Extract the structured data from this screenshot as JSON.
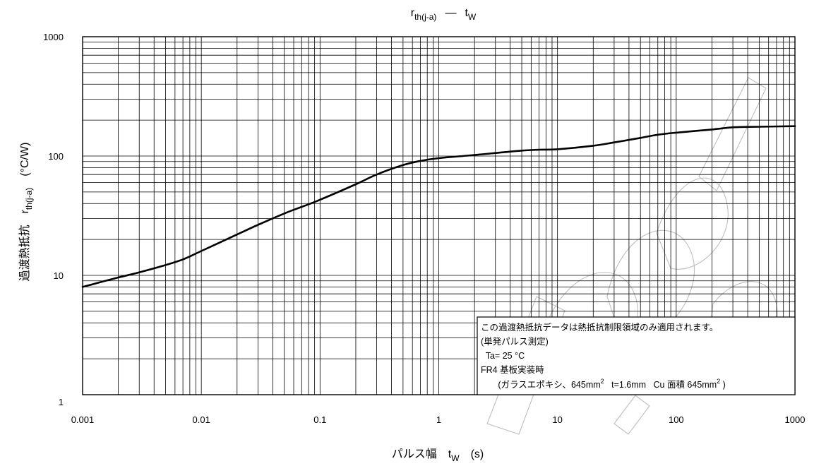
{
  "chart_data": {
    "type": "line",
    "title": {
      "base": "r",
      "sub": "th(j-a)",
      "dash": "—",
      "x_base": "t",
      "x_sub": "W"
    },
    "xlabel": {
      "text": "パルス幅",
      "sym": "t",
      "sym_sub": "W",
      "unit": "(s)"
    },
    "ylabel": {
      "text": "過渡熱抵抗",
      "sym": "r",
      "sym_sub": "th(j-a)",
      "unit": "(°C/W)"
    },
    "xscale": "log",
    "yscale": "log",
    "xlim": [
      0.001,
      1000
    ],
    "ylim": [
      1,
      1000
    ],
    "x_ticks": [
      {
        "value": 0.001,
        "label": "0.001"
      },
      {
        "value": 0.01,
        "label": "0.01"
      },
      {
        "value": 0.1,
        "label": "0.1"
      },
      {
        "value": 1,
        "label": "1"
      },
      {
        "value": 10,
        "label": "10"
      },
      {
        "value": 100,
        "label": "100"
      },
      {
        "value": 1000,
        "label": "1000"
      }
    ],
    "y_ticks": [
      {
        "value": 1,
        "label": "1"
      },
      {
        "value": 10,
        "label": "10"
      },
      {
        "value": 100,
        "label": "100"
      },
      {
        "value": 1000,
        "label": "1000"
      }
    ],
    "grid": true,
    "series": [
      {
        "color": "#000000",
        "x": [
          0.001,
          0.002,
          0.003,
          0.005,
          0.007,
          0.01,
          0.02,
          0.03,
          0.05,
          0.07,
          0.1,
          0.2,
          0.3,
          0.5,
          0.7,
          1,
          2,
          3,
          5,
          7,
          10,
          20,
          30,
          50,
          70,
          100,
          200,
          300,
          500,
          1000
        ],
        "y": [
          8,
          9.6,
          10.6,
          12.2,
          13.6,
          16,
          22,
          26.5,
          33,
          37.5,
          43,
          58,
          70,
          84,
          91,
          96,
          102,
          106,
          111,
          113,
          114,
          122,
          130,
          142,
          151,
          157,
          167,
          174,
          176,
          178
        ]
      }
    ],
    "annotation_lines": [
      "この過渡熱抵抗データは熱抵抗制限領域のみ適用されます。",
      "(単発パルス測定)",
      "  Ta= 25 °C",
      "FR4 基板実装時",
      {
        "a": "(ガラスエポキシ、645mm",
        "a_sup": "2",
        "b": "   t=1.6mm   Cu 面積 645mm",
        "b_sup": "2",
        "c": " )"
      }
    ]
  }
}
